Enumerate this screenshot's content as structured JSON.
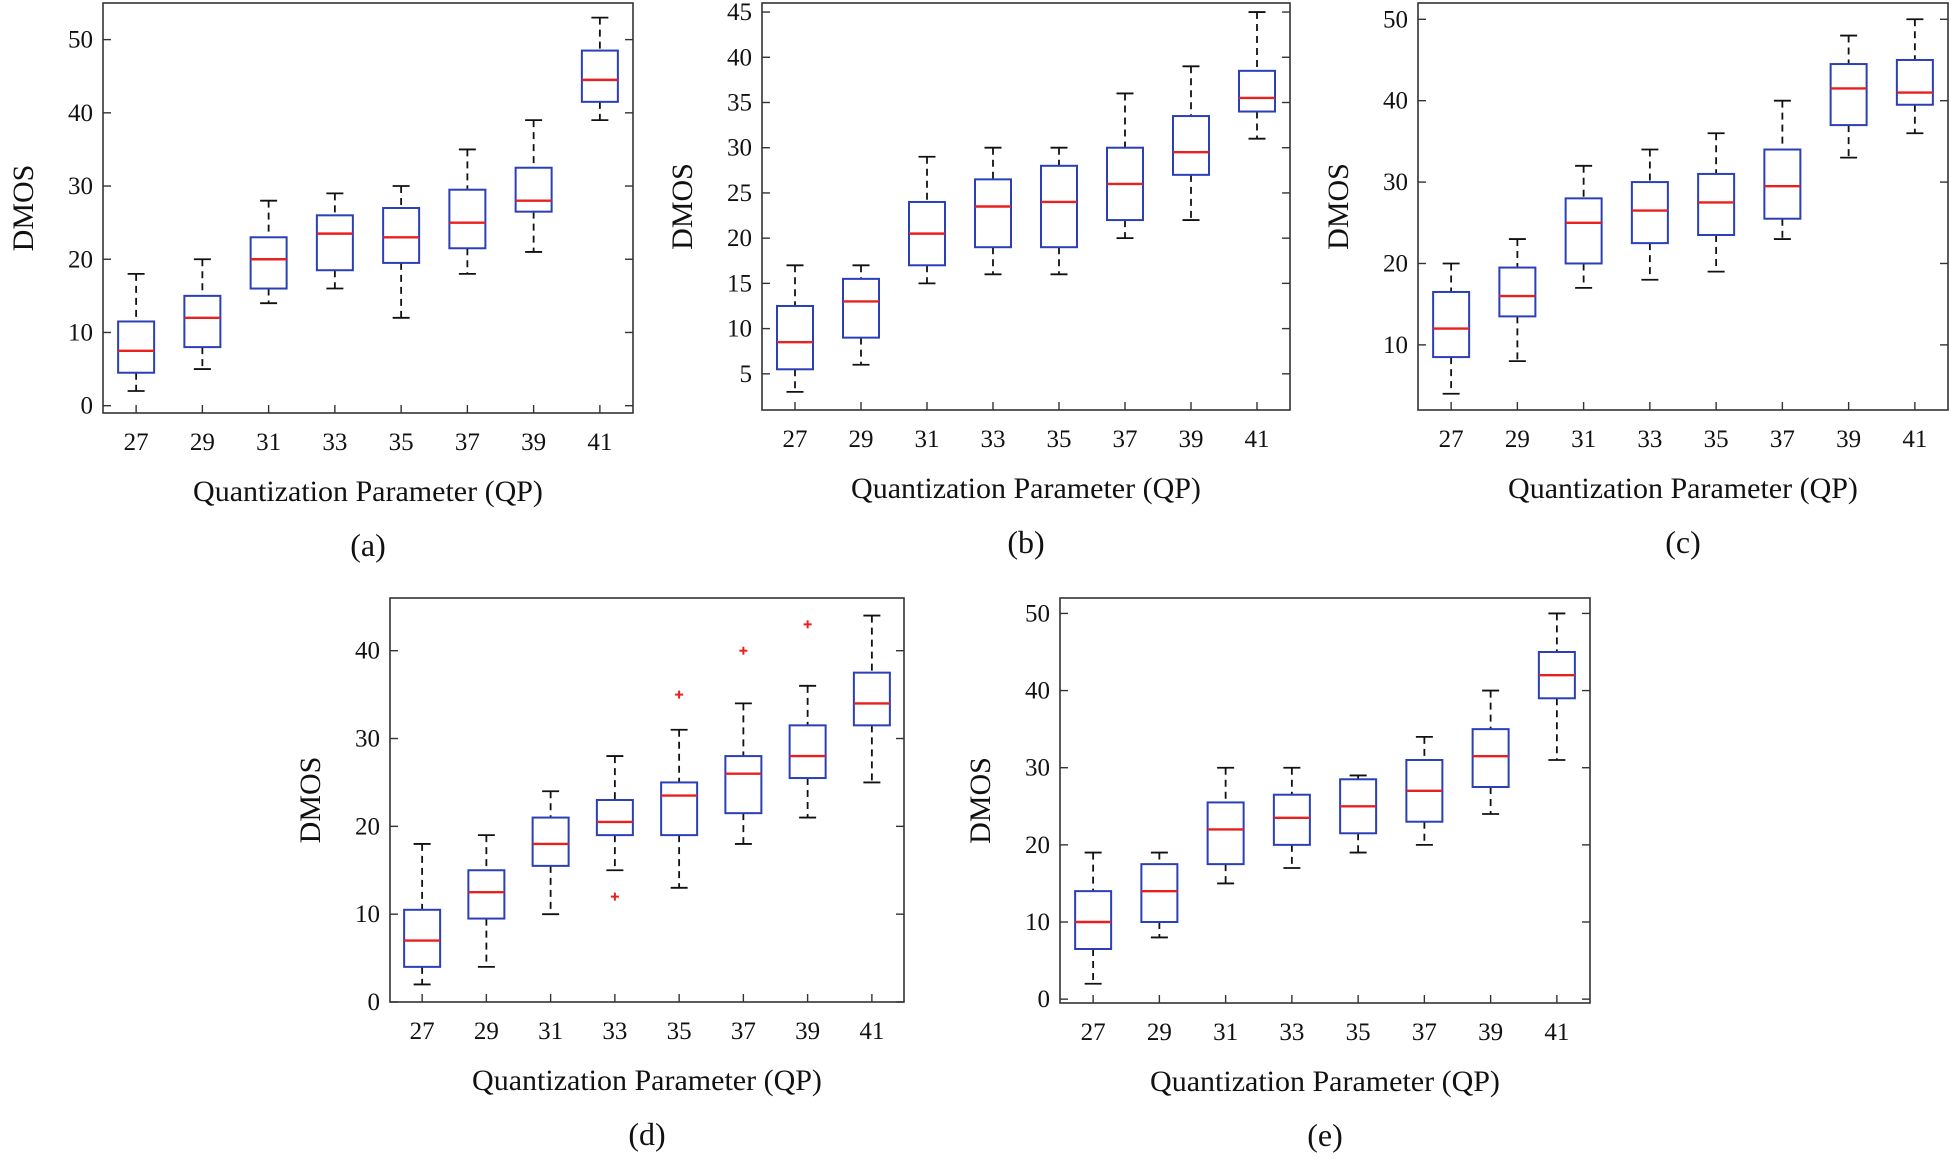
{
  "figure": {
    "background": "#ffffff"
  },
  "colors": {
    "box": "#2a3fb8",
    "median": "#e8201f",
    "outlier": "#e8201f"
  },
  "chart_data": [
    {
      "type": "box",
      "caption": "(a)",
      "xlabel": "Quantization Parameter (QP)",
      "ylabel": "DMOS",
      "ylim": [
        -1,
        55
      ],
      "yticks": [
        0,
        10,
        20,
        30,
        40,
        50
      ],
      "categories": [
        "27",
        "29",
        "31",
        "33",
        "35",
        "37",
        "39",
        "41"
      ],
      "boxes": [
        {
          "whisker_low": 2,
          "q1": 4.5,
          "median": 7.5,
          "q3": 11.5,
          "whisker_high": 18,
          "outliers": []
        },
        {
          "whisker_low": 5,
          "q1": 8,
          "median": 12,
          "q3": 15,
          "whisker_high": 20,
          "outliers": []
        },
        {
          "whisker_low": 14,
          "q1": 16,
          "median": 20,
          "q3": 23,
          "whisker_high": 28,
          "outliers": []
        },
        {
          "whisker_low": 16,
          "q1": 18.5,
          "median": 23.5,
          "q3": 26,
          "whisker_high": 29,
          "outliers": []
        },
        {
          "whisker_low": 12,
          "q1": 19.5,
          "median": 23,
          "q3": 27,
          "whisker_high": 30,
          "outliers": []
        },
        {
          "whisker_low": 18,
          "q1": 21.5,
          "median": 25,
          "q3": 29.5,
          "whisker_high": 35,
          "outliers": []
        },
        {
          "whisker_low": 21,
          "q1": 26.5,
          "median": 28,
          "q3": 32.5,
          "whisker_high": 39,
          "outliers": []
        },
        {
          "whisker_low": 39,
          "q1": 41.5,
          "median": 44.5,
          "q3": 48.5,
          "whisker_high": 53,
          "outliers": []
        }
      ]
    },
    {
      "type": "box",
      "caption": "(b)",
      "xlabel": "Quantization Parameter (QP)",
      "ylabel": "DMOS",
      "ylim": [
        1,
        46
      ],
      "yticks": [
        5,
        10,
        15,
        20,
        25,
        30,
        35,
        40,
        45
      ],
      "categories": [
        "27",
        "29",
        "31",
        "33",
        "35",
        "37",
        "39",
        "41"
      ],
      "boxes": [
        {
          "whisker_low": 3,
          "q1": 5.5,
          "median": 8.5,
          "q3": 12.5,
          "whisker_high": 17,
          "outliers": []
        },
        {
          "whisker_low": 6,
          "q1": 9,
          "median": 13,
          "q3": 15.5,
          "whisker_high": 17,
          "outliers": []
        },
        {
          "whisker_low": 15,
          "q1": 17,
          "median": 20.5,
          "q3": 24,
          "whisker_high": 29,
          "outliers": []
        },
        {
          "whisker_low": 16,
          "q1": 19,
          "median": 23.5,
          "q3": 26.5,
          "whisker_high": 30,
          "outliers": []
        },
        {
          "whisker_low": 16,
          "q1": 19,
          "median": 24,
          "q3": 28,
          "whisker_high": 30,
          "outliers": []
        },
        {
          "whisker_low": 20,
          "q1": 22,
          "median": 26,
          "q3": 30,
          "whisker_high": 36,
          "outliers": []
        },
        {
          "whisker_low": 22,
          "q1": 27,
          "median": 29.5,
          "q3": 33.5,
          "whisker_high": 39,
          "outliers": []
        },
        {
          "whisker_low": 31,
          "q1": 34,
          "median": 35.5,
          "q3": 38.5,
          "whisker_high": 45,
          "outliers": []
        }
      ]
    },
    {
      "type": "box",
      "caption": "(c)",
      "xlabel": "Quantization Parameter (QP)",
      "ylabel": "DMOS",
      "ylim": [
        2,
        52
      ],
      "yticks": [
        10,
        20,
        30,
        40,
        50
      ],
      "categories": [
        "27",
        "29",
        "31",
        "33",
        "35",
        "37",
        "39",
        "41"
      ],
      "boxes": [
        {
          "whisker_low": 4,
          "q1": 8.5,
          "median": 12,
          "q3": 16.5,
          "whisker_high": 20,
          "outliers": []
        },
        {
          "whisker_low": 8,
          "q1": 13.5,
          "median": 16,
          "q3": 19.5,
          "whisker_high": 23,
          "outliers": []
        },
        {
          "whisker_low": 17,
          "q1": 20,
          "median": 25,
          "q3": 28,
          "whisker_high": 32,
          "outliers": []
        },
        {
          "whisker_low": 18,
          "q1": 22.5,
          "median": 26.5,
          "q3": 30,
          "whisker_high": 34,
          "outliers": []
        },
        {
          "whisker_low": 19,
          "q1": 23.5,
          "median": 27.5,
          "q3": 31,
          "whisker_high": 36,
          "outliers": []
        },
        {
          "whisker_low": 23,
          "q1": 25.5,
          "median": 29.5,
          "q3": 34,
          "whisker_high": 40,
          "outliers": []
        },
        {
          "whisker_low": 33,
          "q1": 37,
          "median": 41.5,
          "q3": 44.5,
          "whisker_high": 48,
          "outliers": []
        },
        {
          "whisker_low": 36,
          "q1": 39.5,
          "median": 41,
          "q3": 45,
          "whisker_high": 50,
          "outliers": []
        }
      ]
    },
    {
      "type": "box",
      "caption": "(d)",
      "xlabel": "Quantization Parameter (QP)",
      "ylabel": "DMOS",
      "ylim": [
        0,
        46
      ],
      "yticks": [
        0,
        10,
        20,
        30,
        40
      ],
      "categories": [
        "27",
        "29",
        "31",
        "33",
        "35",
        "37",
        "39",
        "41"
      ],
      "boxes": [
        {
          "whisker_low": 2,
          "q1": 4,
          "median": 7,
          "q3": 10.5,
          "whisker_high": 18,
          "outliers": []
        },
        {
          "whisker_low": 4,
          "q1": 9.5,
          "median": 12.5,
          "q3": 15,
          "whisker_high": 19,
          "outliers": []
        },
        {
          "whisker_low": 10,
          "q1": 15.5,
          "median": 18,
          "q3": 21,
          "whisker_high": 24,
          "outliers": []
        },
        {
          "whisker_low": 15,
          "q1": 19,
          "median": 20.5,
          "q3": 23,
          "whisker_high": 28,
          "outliers": [
            12
          ]
        },
        {
          "whisker_low": 13,
          "q1": 19,
          "median": 23.5,
          "q3": 25,
          "whisker_high": 31,
          "outliers": [
            35
          ]
        },
        {
          "whisker_low": 18,
          "q1": 21.5,
          "median": 26,
          "q3": 28,
          "whisker_high": 34,
          "outliers": [
            40
          ]
        },
        {
          "whisker_low": 21,
          "q1": 25.5,
          "median": 28,
          "q3": 31.5,
          "whisker_high": 36,
          "outliers": [
            43
          ]
        },
        {
          "whisker_low": 25,
          "q1": 31.5,
          "median": 34,
          "q3": 37.5,
          "whisker_high": 44,
          "outliers": []
        }
      ]
    },
    {
      "type": "box",
      "caption": "(e)",
      "xlabel": "Quantization Parameter (QP)",
      "ylabel": "DMOS",
      "ylim": [
        -0.5,
        52
      ],
      "yticks": [
        0,
        10,
        20,
        30,
        40,
        50
      ],
      "categories": [
        "27",
        "29",
        "31",
        "33",
        "35",
        "37",
        "39",
        "41"
      ],
      "boxes": [
        {
          "whisker_low": 2,
          "q1": 6.5,
          "median": 10,
          "q3": 14,
          "whisker_high": 19,
          "outliers": []
        },
        {
          "whisker_low": 8,
          "q1": 10,
          "median": 14,
          "q3": 17.5,
          "whisker_high": 19,
          "outliers": []
        },
        {
          "whisker_low": 15,
          "q1": 17.5,
          "median": 22,
          "q3": 25.5,
          "whisker_high": 30,
          "outliers": []
        },
        {
          "whisker_low": 17,
          "q1": 20,
          "median": 23.5,
          "q3": 26.5,
          "whisker_high": 30,
          "outliers": []
        },
        {
          "whisker_low": 19,
          "q1": 21.5,
          "median": 25,
          "q3": 28.5,
          "whisker_high": 29,
          "outliers": []
        },
        {
          "whisker_low": 20,
          "q1": 23,
          "median": 27,
          "q3": 31,
          "whisker_high": 34,
          "outliers": []
        },
        {
          "whisker_low": 24,
          "q1": 27.5,
          "median": 31.5,
          "q3": 35,
          "whisker_high": 40,
          "outliers": []
        },
        {
          "whisker_low": 31,
          "q1": 39,
          "median": 42,
          "q3": 45,
          "whisker_high": 50,
          "outliers": []
        }
      ]
    }
  ]
}
